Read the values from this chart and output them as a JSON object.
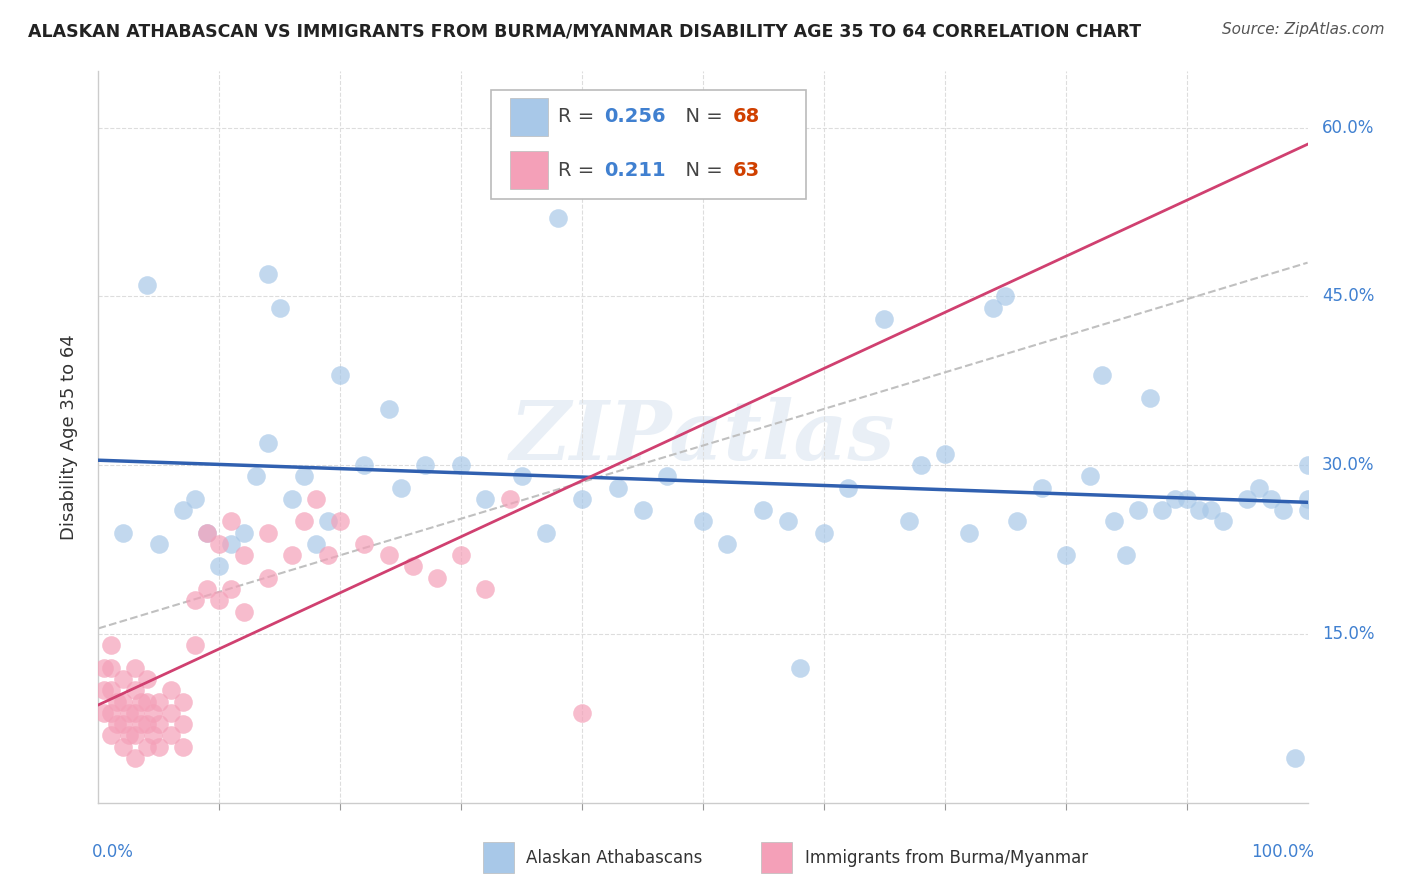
{
  "title": "ALASKAN ATHABASCAN VS IMMIGRANTS FROM BURMA/MYANMAR DISABILITY AGE 35 TO 64 CORRELATION CHART",
  "source": "Source: ZipAtlas.com",
  "ylabel": "Disability Age 35 to 64",
  "legend1_r": "0.256",
  "legend1_n": "68",
  "legend2_r": "0.211",
  "legend2_n": "63",
  "blue_color": "#a8c8e8",
  "pink_color": "#f4a0b8",
  "blue_line_color": "#3060b0",
  "pink_line_color": "#d04070",
  "gray_dash_color": "#c0c0c0",
  "background_color": "#ffffff",
  "watermark": "ZIPatlas",
  "r_text_color": "#4080d0",
  "n_text_color": "#d04000",
  "label_color": "#4080d0",
  "blue_scatter_x": [
    0.02,
    0.04,
    0.05,
    0.07,
    0.08,
    0.09,
    0.1,
    0.11,
    0.12,
    0.13,
    0.14,
    0.14,
    0.15,
    0.16,
    0.17,
    0.18,
    0.19,
    0.2,
    0.22,
    0.24,
    0.25,
    0.27,
    0.3,
    0.32,
    0.35,
    0.37,
    0.4,
    0.43,
    0.45,
    0.47,
    0.5,
    0.52,
    0.55,
    0.57,
    0.58,
    0.6,
    0.62,
    0.65,
    0.67,
    0.68,
    0.7,
    0.72,
    0.74,
    0.75,
    0.76,
    0.78,
    0.8,
    0.82,
    0.83,
    0.84,
    0.85,
    0.86,
    0.87,
    0.88,
    0.89,
    0.9,
    0.91,
    0.92,
    0.93,
    0.95,
    0.96,
    0.97,
    0.98,
    0.99,
    1.0,
    1.0,
    1.0,
    0.38
  ],
  "blue_scatter_y": [
    0.24,
    0.46,
    0.23,
    0.26,
    0.27,
    0.24,
    0.21,
    0.23,
    0.24,
    0.29,
    0.47,
    0.32,
    0.44,
    0.27,
    0.29,
    0.23,
    0.25,
    0.38,
    0.3,
    0.35,
    0.28,
    0.3,
    0.3,
    0.27,
    0.29,
    0.24,
    0.27,
    0.28,
    0.26,
    0.29,
    0.25,
    0.23,
    0.26,
    0.25,
    0.12,
    0.24,
    0.28,
    0.43,
    0.25,
    0.3,
    0.31,
    0.24,
    0.44,
    0.45,
    0.25,
    0.28,
    0.22,
    0.29,
    0.38,
    0.25,
    0.22,
    0.26,
    0.36,
    0.26,
    0.27,
    0.27,
    0.26,
    0.26,
    0.25,
    0.27,
    0.28,
    0.27,
    0.26,
    0.04,
    0.3,
    0.27,
    0.26,
    0.52
  ],
  "pink_scatter_x": [
    0.005,
    0.005,
    0.005,
    0.01,
    0.01,
    0.01,
    0.01,
    0.01,
    0.015,
    0.015,
    0.02,
    0.02,
    0.02,
    0.02,
    0.025,
    0.025,
    0.03,
    0.03,
    0.03,
    0.03,
    0.03,
    0.035,
    0.035,
    0.04,
    0.04,
    0.04,
    0.04,
    0.045,
    0.045,
    0.05,
    0.05,
    0.05,
    0.06,
    0.06,
    0.06,
    0.07,
    0.07,
    0.07,
    0.08,
    0.08,
    0.09,
    0.09,
    0.1,
    0.1,
    0.11,
    0.11,
    0.12,
    0.12,
    0.14,
    0.14,
    0.16,
    0.17,
    0.18,
    0.19,
    0.2,
    0.22,
    0.24,
    0.26,
    0.28,
    0.3,
    0.32,
    0.34,
    0.4
  ],
  "pink_scatter_y": [
    0.08,
    0.1,
    0.12,
    0.06,
    0.08,
    0.1,
    0.12,
    0.14,
    0.07,
    0.09,
    0.05,
    0.07,
    0.09,
    0.11,
    0.06,
    0.08,
    0.04,
    0.06,
    0.08,
    0.1,
    0.12,
    0.07,
    0.09,
    0.05,
    0.07,
    0.09,
    0.11,
    0.06,
    0.08,
    0.05,
    0.07,
    0.09,
    0.06,
    0.08,
    0.1,
    0.05,
    0.07,
    0.09,
    0.14,
    0.18,
    0.19,
    0.24,
    0.18,
    0.23,
    0.19,
    0.25,
    0.17,
    0.22,
    0.2,
    0.24,
    0.22,
    0.25,
    0.27,
    0.22,
    0.25,
    0.23,
    0.22,
    0.21,
    0.2,
    0.22,
    0.19,
    0.27,
    0.08
  ],
  "xlim": [
    0.0,
    1.0
  ],
  "ylim": [
    0.0,
    0.65
  ],
  "ytick_vals": [
    0.15,
    0.3,
    0.45,
    0.6
  ],
  "ytick_labels": [
    "15.0%",
    "30.0%",
    "45.0%",
    "60.0%"
  ],
  "xtick_vals": [
    0.1,
    0.2,
    0.3,
    0.4,
    0.5,
    0.6,
    0.7,
    0.8,
    0.9
  ]
}
